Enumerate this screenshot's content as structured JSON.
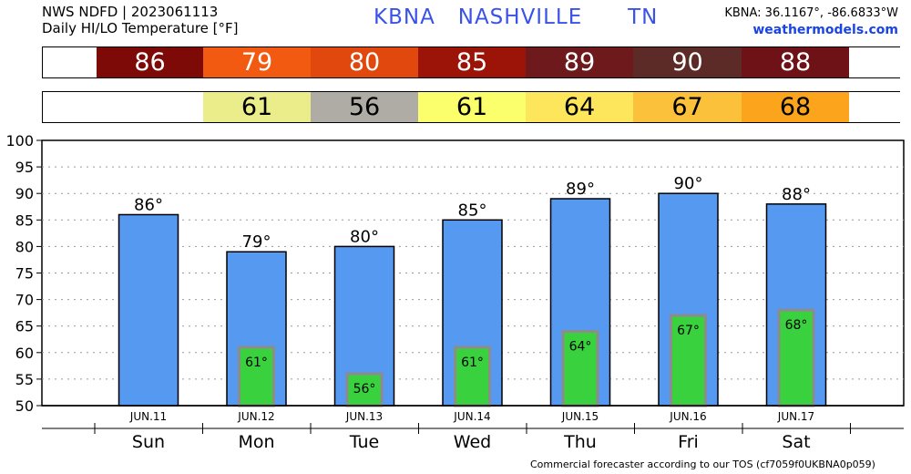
{
  "header": {
    "line1": "NWS NDFD | 2023061113",
    "line2": "Daily HI/LO Temperature [°F]",
    "station": "KBNA   NASHVILLE      TN",
    "coords": "KBNA: 36.1167°, -86.6833°W",
    "site": "weathermodels.com"
  },
  "footer": "Commercial forecaster according to our TOS (cf7059f0UKBNA0p059)",
  "hi_strip": [
    {
      "value": "",
      "color": "#ffffff"
    },
    {
      "value": "86",
      "color": "#7e0a08"
    },
    {
      "value": "79",
      "color": "#f25a11"
    },
    {
      "value": "80",
      "color": "#e0480d"
    },
    {
      "value": "85",
      "color": "#9c1308"
    },
    {
      "value": "89",
      "color": "#6e1a1c"
    },
    {
      "value": "90",
      "color": "#5c2b28"
    },
    {
      "value": "88",
      "color": "#6f1217"
    },
    {
      "value": "",
      "color": "#ffffff"
    }
  ],
  "lo_strip": [
    {
      "value": "",
      "color": "#ffffff"
    },
    {
      "value": "",
      "color": "#ffffff"
    },
    {
      "value": "61",
      "color": "#ebed8a"
    },
    {
      "value": "56",
      "color": "#aeaca4"
    },
    {
      "value": "61",
      "color": "#fcff6c"
    },
    {
      "value": "64",
      "color": "#fde65c"
    },
    {
      "value": "67",
      "color": "#fbc13a"
    },
    {
      "value": "68",
      "color": "#fba41c"
    },
    {
      "value": "",
      "color": "#ffffff"
    }
  ],
  "chart_data": {
    "type": "bar",
    "ylim": [
      50,
      100
    ],
    "yticks": [
      "50",
      "55",
      "60",
      "65",
      "70",
      "75",
      "80",
      "85",
      "90",
      "95",
      "100"
    ],
    "dates": [
      "JUN.11",
      "JUN.12",
      "JUN.13",
      "JUN.14",
      "JUN.15",
      "JUN.16",
      "JUN.17"
    ],
    "days": [
      "Sun",
      "Mon",
      "Tue",
      "Wed",
      "Thu",
      "Fri",
      "Sat"
    ],
    "series": [
      {
        "values": [
          86,
          79,
          80,
          85,
          89,
          90,
          88
        ],
        "labels": [
          "86°",
          "79°",
          "80°",
          "85°",
          "89°",
          "90°",
          "88°"
        ],
        "color": "#5599f0"
      },
      {
        "values": [
          null,
          61,
          56,
          61,
          64,
          67,
          68
        ],
        "labels": [
          "",
          "61°",
          "56°",
          "61°",
          "64°",
          "67°",
          "68°"
        ],
        "color": "#39d13e"
      }
    ],
    "grid": true
  }
}
